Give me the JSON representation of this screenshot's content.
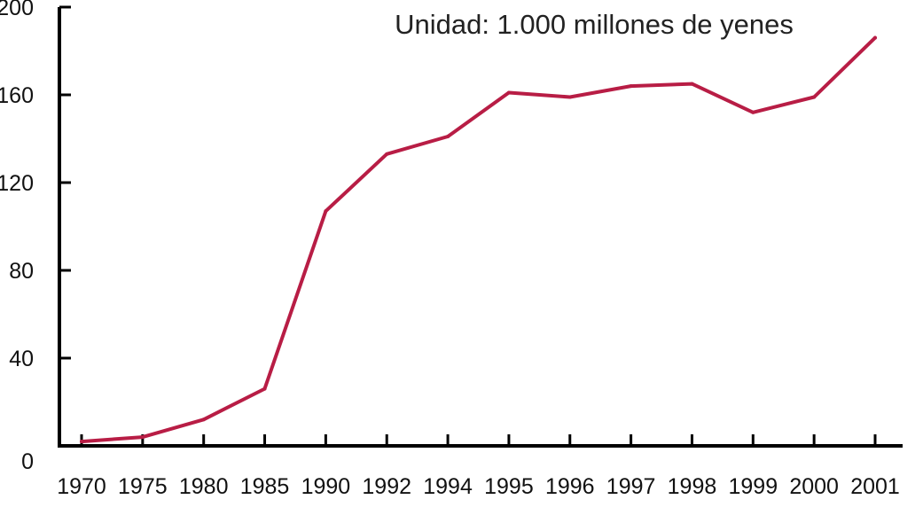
{
  "chart_data": {
    "type": "line",
    "title": "",
    "unit_label": "Unidad: 1.000 millones de yenes",
    "xlabel": "",
    "ylabel": "",
    "categories": [
      "1970",
      "1975",
      "1980",
      "1985",
      "1990",
      "1992",
      "1994",
      "1995",
      "1996",
      "1997",
      "1998",
      "1999",
      "2000",
      "2001"
    ],
    "series": [
      {
        "values": [
          2,
          4,
          12,
          26,
          107,
          133,
          141,
          161,
          159,
          164,
          165,
          152,
          159,
          186
        ]
      }
    ],
    "y_ticks": [
      "0",
      "40",
      "80",
      "120",
      "160",
      "200"
    ],
    "ylim": [
      0,
      200
    ],
    "grid": false,
    "legend": "none",
    "colors": {
      "line": "#b81d45",
      "axis": "#000000",
      "text": "#111111"
    }
  }
}
